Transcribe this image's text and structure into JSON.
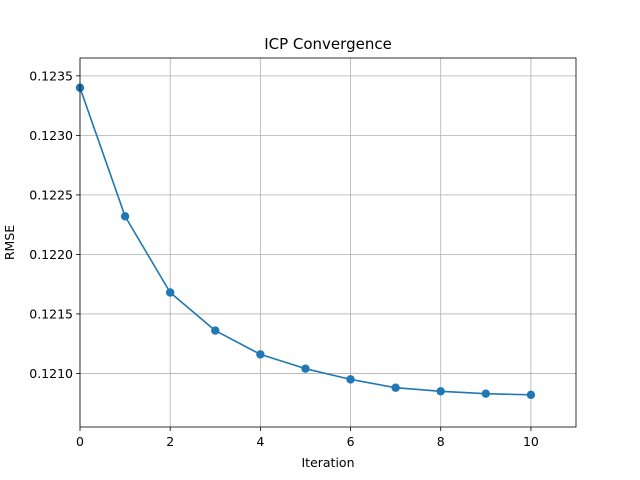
{
  "chart_data": {
    "type": "line",
    "title": "ICP Convergence",
    "xlabel": "Iteration",
    "ylabel": "RMSE",
    "xlim": [
      0,
      11
    ],
    "ylim": [
      0.12055,
      0.12365
    ],
    "xticks": [
      0,
      2,
      4,
      6,
      8,
      10
    ],
    "yticks": [
      0.121,
      0.1215,
      0.122,
      0.1225,
      0.123,
      0.1235
    ],
    "ytick_labels": [
      "0.1210",
      "0.1215",
      "0.1220",
      "0.1225",
      "0.1230",
      "0.1235"
    ],
    "grid": true,
    "series": [
      {
        "color": "#1f77b4",
        "marker": "circle",
        "x": [
          0,
          1,
          2,
          3,
          4,
          5,
          6,
          7,
          8,
          9,
          10
        ],
        "y": [
          0.1234,
          0.12232,
          0.12168,
          0.12136,
          0.12116,
          0.12104,
          0.12095,
          0.12088,
          0.12085,
          0.12083,
          0.12082
        ]
      }
    ]
  }
}
